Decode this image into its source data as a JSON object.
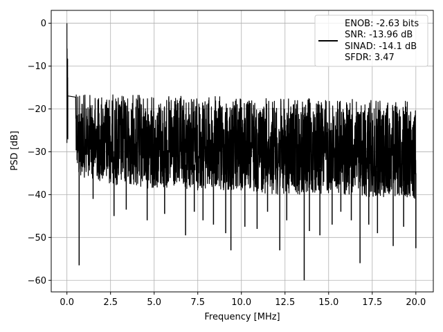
{
  "chart_data": {
    "type": "line",
    "title": "",
    "xlabel": "Frequency [MHz]",
    "ylabel": "PSD [dB]",
    "xlim": [
      -0.9,
      21.0
    ],
    "ylim": [
      -62.7,
      3.0
    ],
    "x_ticks": [
      0.0,
      2.5,
      5.0,
      7.5,
      10.0,
      12.5,
      15.0,
      17.5,
      20.0
    ],
    "x_tick_labels": [
      "0.0",
      "2.5",
      "5.0",
      "7.5",
      "10.0",
      "12.5",
      "15.0",
      "17.5",
      "20.0"
    ],
    "y_ticks": [
      0,
      -10,
      -20,
      -30,
      -40,
      -50,
      -60
    ],
    "y_tick_labels": [
      "0",
      "−10",
      "−20",
      "−30",
      "−40",
      "−50",
      "−60"
    ],
    "grid": true,
    "legend_position": "top-right",
    "legend_lines": [
      "ENOB: -2.63 bits",
      "SNR: -13.96 dB",
      "SINAD: -14.1 dB",
      "SFDR: 3.47"
    ],
    "line_color": "#000000",
    "series": [
      {
        "x": [
          0.0,
          0.02,
          0.05,
          0.08,
          0.12,
          0.16,
          0.2,
          0.25,
          0.3,
          0.35,
          0.4,
          0.5,
          0.6,
          0.7,
          0.8,
          1.0,
          1.2,
          1.5,
          2.0,
          2.5,
          3.0,
          3.5,
          4.0,
          5.0,
          6.0,
          7.0,
          8.0,
          9.0,
          10.0,
          11.0,
          12.0,
          13.0,
          14.0,
          15.0,
          16.0,
          17.0,
          18.0,
          19.0,
          20.0
        ],
        "y": [
          0.0,
          -4.5,
          -8.5,
          -11.0,
          -14.0,
          -13.0,
          -15.5,
          -18.0,
          -17.5,
          -19.0,
          -20.0,
          -21.5,
          -22.5,
          -23.0,
          -23.5,
          -24.5,
          -25.0,
          -25.5,
          -26.0,
          -26.5,
          -26.5,
          -27.0,
          -27.0,
          -27.5,
          -27.5,
          -28.0,
          -28.0,
          -28.0,
          -28.5,
          -28.5,
          -28.5,
          -28.5,
          -29.0,
          -29.0,
          -29.0,
          -29.0,
          -29.0,
          -29.5,
          -29.5
        ],
        "band_top": [
          0.0,
          -4.0,
          -6.0,
          -9.0,
          -11.0,
          -12.0,
          -13.0,
          -15.0,
          -15.0,
          -15.5,
          -16.0,
          -16.5,
          -16.5,
          -16.5,
          -16.5,
          -16.5,
          -16.5,
          -16.5,
          -16.5,
          -16.5,
          -16.5,
          -16.5,
          -16.5,
          -17.0,
          -17.0,
          -17.0,
          -17.0,
          -17.0,
          -17.5,
          -17.5,
          -17.5,
          -17.5,
          -17.5,
          -17.5,
          -17.5,
          -18.0,
          -18.0,
          -18.0,
          -18.0
        ],
        "band_bottom": [
          -28.0,
          -27.0,
          -28.0,
          -29.0,
          -30.0,
          -31.0,
          -31.5,
          -32.0,
          -33.0,
          -33.5,
          -34.0,
          -35.0,
          -35.0,
          -35.5,
          -35.5,
          -36.0,
          -36.0,
          -36.5,
          -37.0,
          -37.5,
          -38.0,
          -38.0,
          -38.5,
          -38.5,
          -39.0,
          -39.0,
          -39.0,
          -39.5,
          -39.5,
          -39.5,
          -40.0,
          -40.0,
          -40.0,
          -40.0,
          -40.0,
          -40.5,
          -40.5,
          -40.5,
          -41.0
        ],
        "dips_x": [
          0.7,
          1.5,
          2.7,
          3.4,
          4.6,
          5.6,
          6.8,
          7.3,
          7.8,
          8.4,
          9.1,
          9.4,
          10.2,
          10.9,
          11.5,
          12.2,
          12.6,
          13.6,
          13.9,
          14.5,
          15.2,
          15.7,
          16.3,
          16.8,
          17.3,
          17.8,
          18.7,
          19.3,
          20.0
        ],
        "dips_y": [
          -56.5,
          -41.0,
          -45.0,
          -43.5,
          -46.0,
          -44.5,
          -49.5,
          -44.0,
          -46.0,
          -47.0,
          -49.0,
          -53.0,
          -47.5,
          -48.0,
          -44.0,
          -53.0,
          -46.0,
          -60.0,
          -48.5,
          -49.5,
          -47.0,
          -44.0,
          -46.0,
          -56.0,
          -47.0,
          -49.0,
          -52.0,
          -47.5,
          -52.5
        ]
      }
    ]
  }
}
